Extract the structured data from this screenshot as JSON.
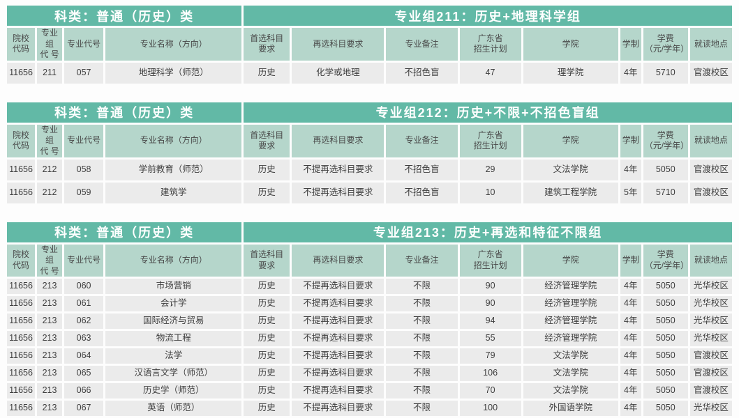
{
  "colors": {
    "band_bg": "#62b9a6",
    "header_bg": "#b5d6cb",
    "row_bg": "#ebebeb",
    "band_text": "#ffffff",
    "text": "#3e3e3e"
  },
  "columns": [
    "院校\n代码",
    "专业组\n代 号",
    "专业代号",
    "专业名称（方向）",
    "首选科目\n要求",
    "再选科目要求",
    "专业备注",
    "广东省\n招生计划",
    "学院",
    "学制",
    "学费\n（元/学年）",
    "就读地点"
  ],
  "tables": [
    {
      "category_label": "科类：普通（历史）类",
      "group_label": "专业组211：历史+地理科学组",
      "rows": [
        [
          "11656",
          "211",
          "057",
          "地理科学（师范）",
          "历史",
          "化学或地理",
          "不招色盲",
          "47",
          "理学院",
          "4年",
          "5710",
          "官渡校区"
        ]
      ]
    },
    {
      "category_label": "科类：普通（历史）类",
      "group_label": "专业组212：历史+不限+不招色盲组",
      "rows": [
        [
          "11656",
          "212",
          "058",
          "学前教育（师范）",
          "历史",
          "不提再选科目要求",
          "不招色盲",
          "29",
          "文法学院",
          "4年",
          "5050",
          "官渡校区"
        ],
        [
          "11656",
          "212",
          "059",
          "建筑学",
          "历史",
          "不提再选科目要求",
          "不招色盲",
          "10",
          "建筑工程学院",
          "5年",
          "5710",
          "官渡校区"
        ]
      ]
    },
    {
      "category_label": "科类：普通（历史）类",
      "group_label": "专业组213：历史+再选和特征不限组",
      "last_row_partial": true,
      "rows": [
        [
          "11656",
          "213",
          "060",
          "市场营销",
          "历史",
          "不提再选科目要求",
          "不限",
          "90",
          "经济管理学院",
          "4年",
          "5050",
          "光华校区"
        ],
        [
          "11656",
          "213",
          "061",
          "会计学",
          "历史",
          "不提再选科目要求",
          "不限",
          "90",
          "经济管理学院",
          "4年",
          "5050",
          "光华校区"
        ],
        [
          "11656",
          "213",
          "062",
          "国际经济与贸易",
          "历史",
          "不提再选科目要求",
          "不限",
          "94",
          "经济管理学院",
          "4年",
          "5050",
          "光华校区"
        ],
        [
          "11656",
          "213",
          "063",
          "物流工程",
          "历史",
          "不提再选科目要求",
          "不限",
          "55",
          "经济管理学院",
          "4年",
          "5050",
          "光华校区"
        ],
        [
          "11656",
          "213",
          "064",
          "法学",
          "历史",
          "不提再选科目要求",
          "不限",
          "79",
          "文法学院",
          "4年",
          "5050",
          "官渡校区"
        ],
        [
          "11656",
          "213",
          "065",
          "汉语言文学（师范）",
          "历史",
          "不提再选科目要求",
          "不限",
          "106",
          "文法学院",
          "4年",
          "5050",
          "官渡校区"
        ],
        [
          "11656",
          "213",
          "066",
          "历史学（师范）",
          "历史",
          "不提再选科目要求",
          "不限",
          "70",
          "文法学院",
          "4年",
          "5050",
          "官渡校区"
        ],
        [
          "11656",
          "213",
          "067",
          "英语（师范）",
          "历史",
          "不提再选科目要求",
          "不限",
          "100",
          "外国语学院",
          "4年",
          "5050",
          "光华校区"
        ]
      ]
    }
  ]
}
